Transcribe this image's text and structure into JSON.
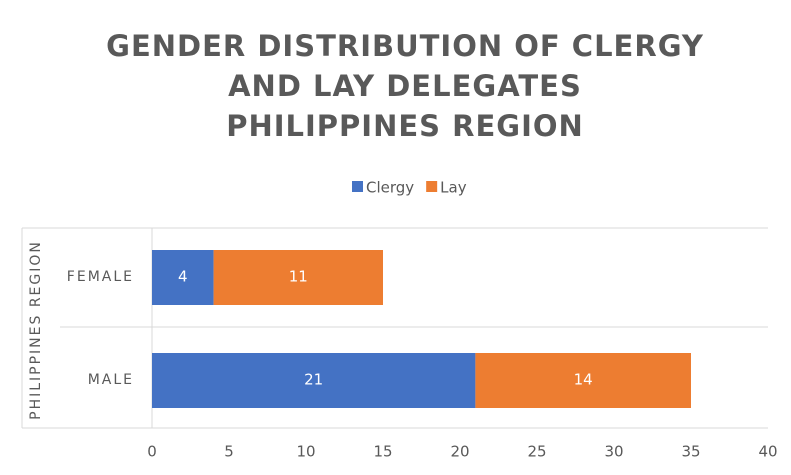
{
  "chart_data": {
    "type": "stacked_bar_horizontal",
    "title": [
      "GENDER DISTRIBUTION OF CLERGY",
      "AND LAY DELEGATES",
      "PHILIPPINES REGION"
    ],
    "y_label": "PHILIPPINES REGION",
    "categories": [
      "FEMALE",
      "MALE"
    ],
    "series": [
      {
        "name": "Clergy",
        "color": "#4472c4",
        "values": [
          4,
          21
        ]
      },
      {
        "name": "Lay",
        "color": "#ed7d31",
        "values": [
          11,
          14
        ]
      }
    ],
    "xlim": [
      0,
      40
    ],
    "xticks": [
      0,
      5,
      10,
      15,
      20,
      25,
      30,
      35,
      40
    ],
    "legend": "top"
  }
}
